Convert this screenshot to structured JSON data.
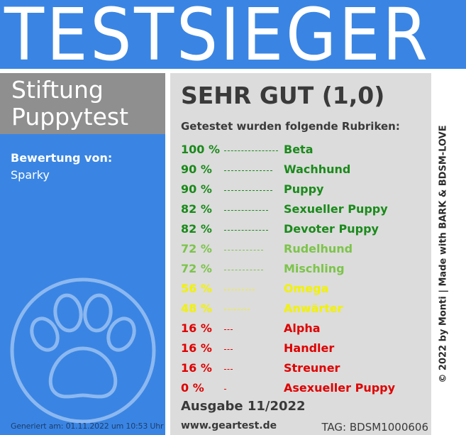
{
  "banner": {
    "title": "TESTSIEGER",
    "color": "#3a85e3"
  },
  "brand": {
    "line1": "Stiftung",
    "line2": "Puppytest",
    "bg": "#8f8f8f"
  },
  "reviewer": {
    "label": "Bewertung von:",
    "name": "Sparky"
  },
  "generated": "Generiert am: 01.11.2022 um 10:53 Uhr",
  "verdict": "SEHR GUT (1,0)",
  "intro": "Getestet wurden folgende Rubriken:",
  "rows": [
    {
      "percent": "100 %",
      "value": 100,
      "category": "Beta",
      "color": "#1a8a1a"
    },
    {
      "percent": "90 %",
      "value": 90,
      "category": "Wachhund",
      "color": "#1a8a1a"
    },
    {
      "percent": "90 %",
      "value": 90,
      "category": "Puppy",
      "color": "#1a8a1a"
    },
    {
      "percent": "82 %",
      "value": 82,
      "category": "Sexueller Puppy",
      "color": "#1a8a1a"
    },
    {
      "percent": "82 %",
      "value": 82,
      "category": "Devoter Puppy",
      "color": "#1a8a1a"
    },
    {
      "percent": "72 %",
      "value": 72,
      "category": "Rudelhund",
      "color": "#7cc44a"
    },
    {
      "percent": "72 %",
      "value": 72,
      "category": "Mischling",
      "color": "#7cc44a"
    },
    {
      "percent": "56 %",
      "value": 56,
      "category": "Omega",
      "color": "#f2f200"
    },
    {
      "percent": "48 %",
      "value": 48,
      "category": "Anwärter",
      "color": "#f2f200"
    },
    {
      "percent": "16 %",
      "value": 16,
      "category": "Alpha",
      "color": "#e00000"
    },
    {
      "percent": "16 %",
      "value": 16,
      "category": "Handler",
      "color": "#e00000"
    },
    {
      "percent": "16 %",
      "value": 16,
      "category": "Streuner",
      "color": "#e00000"
    },
    {
      "percent": "0 %",
      "value": 0,
      "category": "Asexueller Puppy",
      "color": "#e00000"
    }
  ],
  "issue": "Ausgabe 11/2022",
  "site": "www.geartest.de",
  "tag": "TAG: BDSM1000606",
  "credit": "© 2022 by Monti | Made with BARK & BDSM-LOVE",
  "icons": {
    "paw": "paw-icon"
  }
}
